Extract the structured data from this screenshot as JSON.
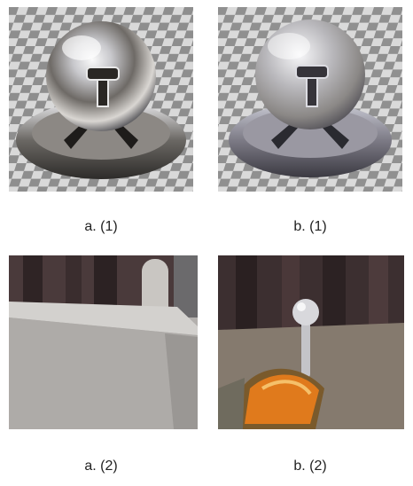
{
  "figure": {
    "panels": [
      {
        "id": "a1",
        "caption": "a. (1)",
        "subject": "glossy metallic sphere on checkerboard (noisy)"
      },
      {
        "id": "b1",
        "caption": "b. (1)",
        "subject": "brushed metallic sphere on checkerboard (smooth)"
      },
      {
        "id": "a2",
        "caption": "a. (2)",
        "subject": "close-up of grey beam against dark columns"
      },
      {
        "id": "b2",
        "caption": "b. (2)",
        "subject": "close-up of joystick lever and orange object"
      }
    ]
  },
  "colors": {
    "checker_light": "#d9d9d9",
    "checker_dark": "#8e8e8e",
    "metal_highlight": "#f4f4f6",
    "metal_shadow": "#3a3a40",
    "column_dark": "#3c2f30",
    "beam_grey": "#a9a7a5",
    "accent_orange": "#e07a1c"
  }
}
